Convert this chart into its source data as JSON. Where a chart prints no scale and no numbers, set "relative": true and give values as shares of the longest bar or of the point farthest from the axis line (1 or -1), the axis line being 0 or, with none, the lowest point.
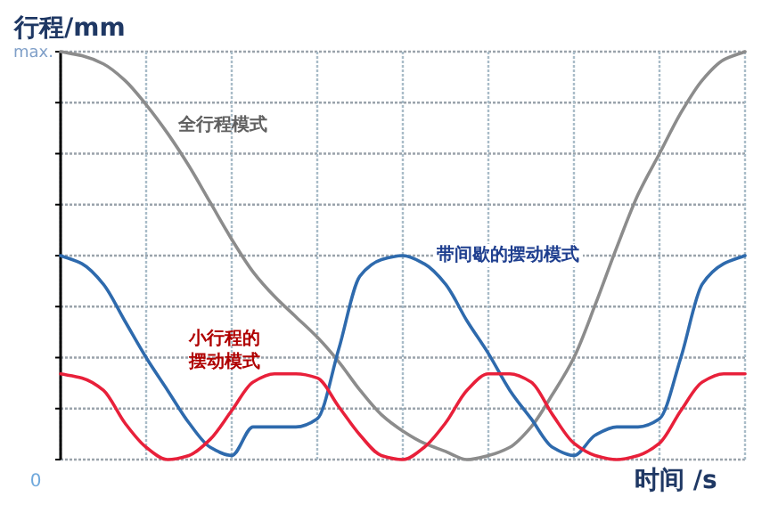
{
  "chart_data": {
    "type": "line",
    "xlabel": "时间 /s",
    "ylabel": "行程/mm",
    "categories": [
      null,
      null,
      null,
      null,
      null,
      null,
      null,
      null,
      null,
      null,
      null,
      null,
      null,
      null,
      null,
      null,
      null,
      null,
      null,
      null,
      null,
      null,
      null,
      null,
      null,
      null,
      null,
      null,
      null,
      null,
      null,
      null,
      null
    ],
    "relative": true,
    "annotations": [
      "max.",
      "0"
    ],
    "grid": true,
    "series": [
      {
        "name": "全行程模式",
        "color": "#8c8c8c",
        "values": [
          1.0,
          0.99,
          0.97,
          0.93,
          0.87,
          0.8,
          0.72,
          0.63,
          0.54,
          0.46,
          0.4,
          0.35,
          0.3,
          0.24,
          0.17,
          0.11,
          0.07,
          0.04,
          0.02,
          0.0,
          0.01,
          0.03,
          0.08,
          0.16,
          0.25,
          0.38,
          0.52,
          0.65,
          0.75,
          0.85,
          0.93,
          0.98,
          1.0
        ]
      },
      {
        "name": "带间歇的摆动模式",
        "color": "#2e6aad",
        "values": [
          0.5,
          0.48,
          0.43,
          0.34,
          0.25,
          0.17,
          0.09,
          0.03,
          0.01,
          0.08,
          0.08,
          0.08,
          0.1,
          0.27,
          0.45,
          0.49,
          0.5,
          0.48,
          0.43,
          0.34,
          0.26,
          0.17,
          0.1,
          0.03,
          0.01,
          0.06,
          0.08,
          0.08,
          0.1,
          0.25,
          0.43,
          0.48,
          0.5
        ]
      },
      {
        "name": "小行程的摆动模式",
        "color": "#e8203a",
        "values": [
          0.21,
          0.2,
          0.17,
          0.09,
          0.03,
          0.0,
          0.01,
          0.05,
          0.12,
          0.19,
          0.21,
          0.21,
          0.2,
          0.13,
          0.06,
          0.01,
          0.0,
          0.03,
          0.09,
          0.17,
          0.21,
          0.21,
          0.19,
          0.11,
          0.04,
          0.01,
          0.0,
          0.01,
          0.04,
          0.12,
          0.19,
          0.21,
          0.21
        ]
      }
    ]
  }
}
